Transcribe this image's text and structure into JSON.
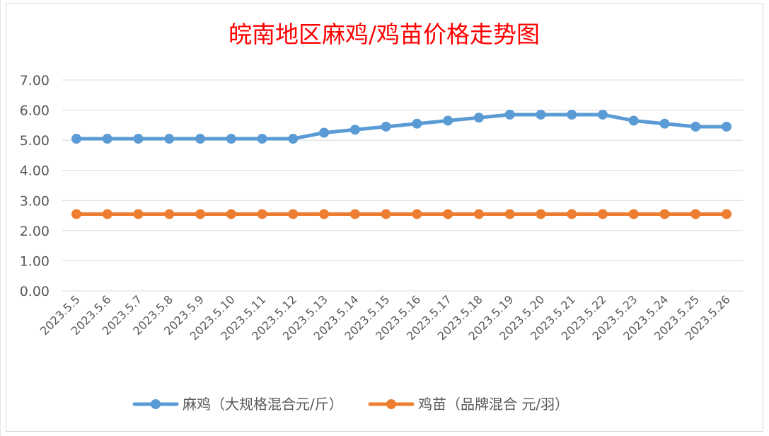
{
  "chart_data": {
    "type": "line",
    "title": "皖南地区麻鸡/鸡苗价格走势图",
    "xlabel": "",
    "ylabel": "",
    "x": [
      "2023.5.5",
      "2023.5.6",
      "2023.5.7",
      "2023.5.8",
      "2023.5.9",
      "2023.5.10",
      "2023.5.11",
      "2023.5.12",
      "2023.5.13",
      "2023.5.14",
      "2023.5.15",
      "2023.5.16",
      "2023.5.17",
      "2023.5.18",
      "2023.5.19",
      "2023.5.20",
      "2023.5.21",
      "2023.5.22",
      "2023.5.23",
      "2023.5.24",
      "2023.5.25",
      "2023.5.26"
    ],
    "ylim": [
      0,
      7
    ],
    "yticks": [
      "0.00",
      "1.00",
      "2.00",
      "3.00",
      "4.00",
      "5.00",
      "6.00",
      "7.00"
    ],
    "grid": true,
    "legend_position": "bottom",
    "series": [
      {
        "name": "麻鸡（大规格混合元/斤）",
        "color": "#5b9bd5",
        "values": [
          5.05,
          5.05,
          5.05,
          5.05,
          5.05,
          5.05,
          5.05,
          5.05,
          5.25,
          5.35,
          5.45,
          5.55,
          5.65,
          5.75,
          5.85,
          5.85,
          5.85,
          5.85,
          5.65,
          5.55,
          5.45,
          5.45
        ]
      },
      {
        "name": "鸡苗（品牌混合 元/羽）",
        "color": "#ed7d31",
        "values": [
          2.55,
          2.55,
          2.55,
          2.55,
          2.55,
          2.55,
          2.55,
          2.55,
          2.55,
          2.55,
          2.55,
          2.55,
          2.55,
          2.55,
          2.55,
          2.55,
          2.55,
          2.55,
          2.55,
          2.55,
          2.55,
          2.55
        ]
      }
    ]
  }
}
